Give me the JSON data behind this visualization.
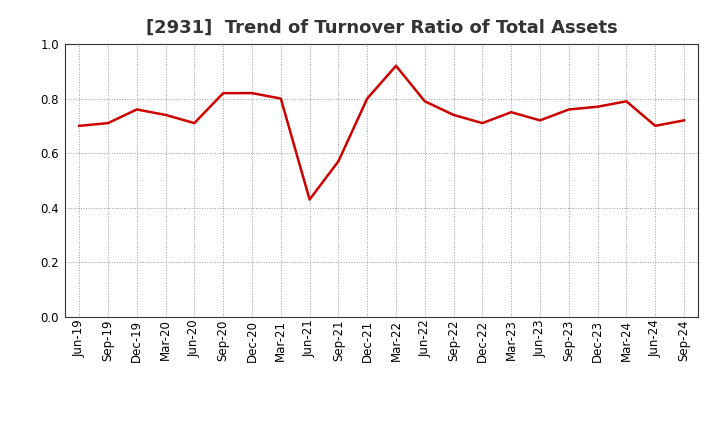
{
  "title": "[2931]  Trend of Turnover Ratio of Total Assets",
  "x_labels": [
    "Jun-19",
    "Sep-19",
    "Dec-19",
    "Mar-20",
    "Jun-20",
    "Sep-20",
    "Dec-20",
    "Mar-21",
    "Jun-21",
    "Sep-21",
    "Dec-21",
    "Mar-22",
    "Jun-22",
    "Sep-22",
    "Dec-22",
    "Mar-23",
    "Jun-23",
    "Sep-23",
    "Dec-23",
    "Mar-24",
    "Jun-24",
    "Sep-24"
  ],
  "values": [
    0.7,
    0.71,
    0.76,
    0.74,
    0.71,
    0.82,
    0.82,
    0.8,
    0.43,
    0.57,
    0.8,
    0.92,
    0.79,
    0.74,
    0.71,
    0.75,
    0.72,
    0.76,
    0.77,
    0.79,
    0.7,
    0.72
  ],
  "line_color": "#cc0000",
  "background_color": "#ffffff",
  "plot_bg_color": "#ffffff",
  "grid_color": "#999999",
  "ylim": [
    0.0,
    1.0
  ],
  "yticks": [
    0.0,
    0.2,
    0.4,
    0.6,
    0.8,
    1.0
  ],
  "title_fontsize": 13,
  "tick_fontsize": 8.5,
  "line_width": 1.8
}
